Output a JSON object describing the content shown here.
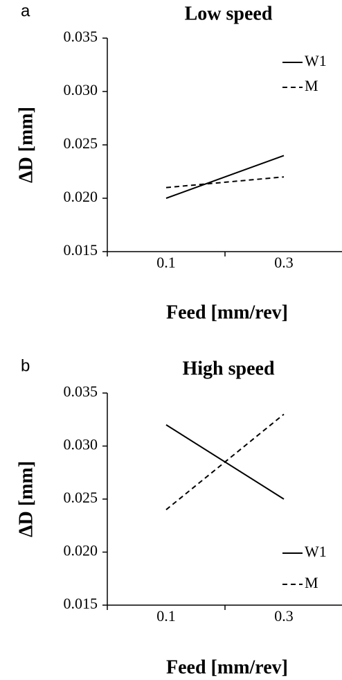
{
  "chart_data": [
    {
      "type": "line",
      "panel_label": "a",
      "title": "Low speed",
      "x_label": "Feed [mm/rev]",
      "y_label": "ΔD [mm]",
      "categories": [
        "0.1",
        "0.3"
      ],
      "series": [
        {
          "name": "W1",
          "color": "#000000",
          "style": "solid",
          "values": [
            0.02,
            0.024
          ]
        },
        {
          "name": "M",
          "color": "#000000",
          "style": "dashed",
          "values": [
            0.021,
            0.022
          ]
        }
      ],
      "ylim": [
        0.015,
        0.035
      ],
      "yticks": [
        {
          "value": 0.015,
          "label": "0.015"
        },
        {
          "value": 0.02,
          "label": "0.020"
        },
        {
          "value": 0.025,
          "label": "0.025"
        },
        {
          "value": 0.03,
          "label": "0.030"
        },
        {
          "value": 0.035,
          "label": "0.035"
        }
      ],
      "legend": "top-right"
    },
    {
      "type": "line",
      "panel_label": "b",
      "title": "High speed",
      "x_label": "Feed [mm/rev]",
      "y_label": "ΔD [mm]",
      "categories": [
        "0.1",
        "0.3"
      ],
      "series": [
        {
          "name": "W1",
          "color": "#000000",
          "style": "solid",
          "values": [
            0.032,
            0.025
          ]
        },
        {
          "name": "M",
          "color": "#000000",
          "style": "dashed",
          "values": [
            0.024,
            0.033
          ]
        }
      ],
      "ylim": [
        0.015,
        0.035
      ],
      "yticks": [
        {
          "value": 0.015,
          "label": "0.015"
        },
        {
          "value": 0.02,
          "label": "0.020"
        },
        {
          "value": 0.025,
          "label": "0.025"
        },
        {
          "value": 0.03,
          "label": "0.030"
        },
        {
          "value": 0.035,
          "label": "0.035"
        }
      ],
      "legend": "bottom-right"
    }
  ]
}
